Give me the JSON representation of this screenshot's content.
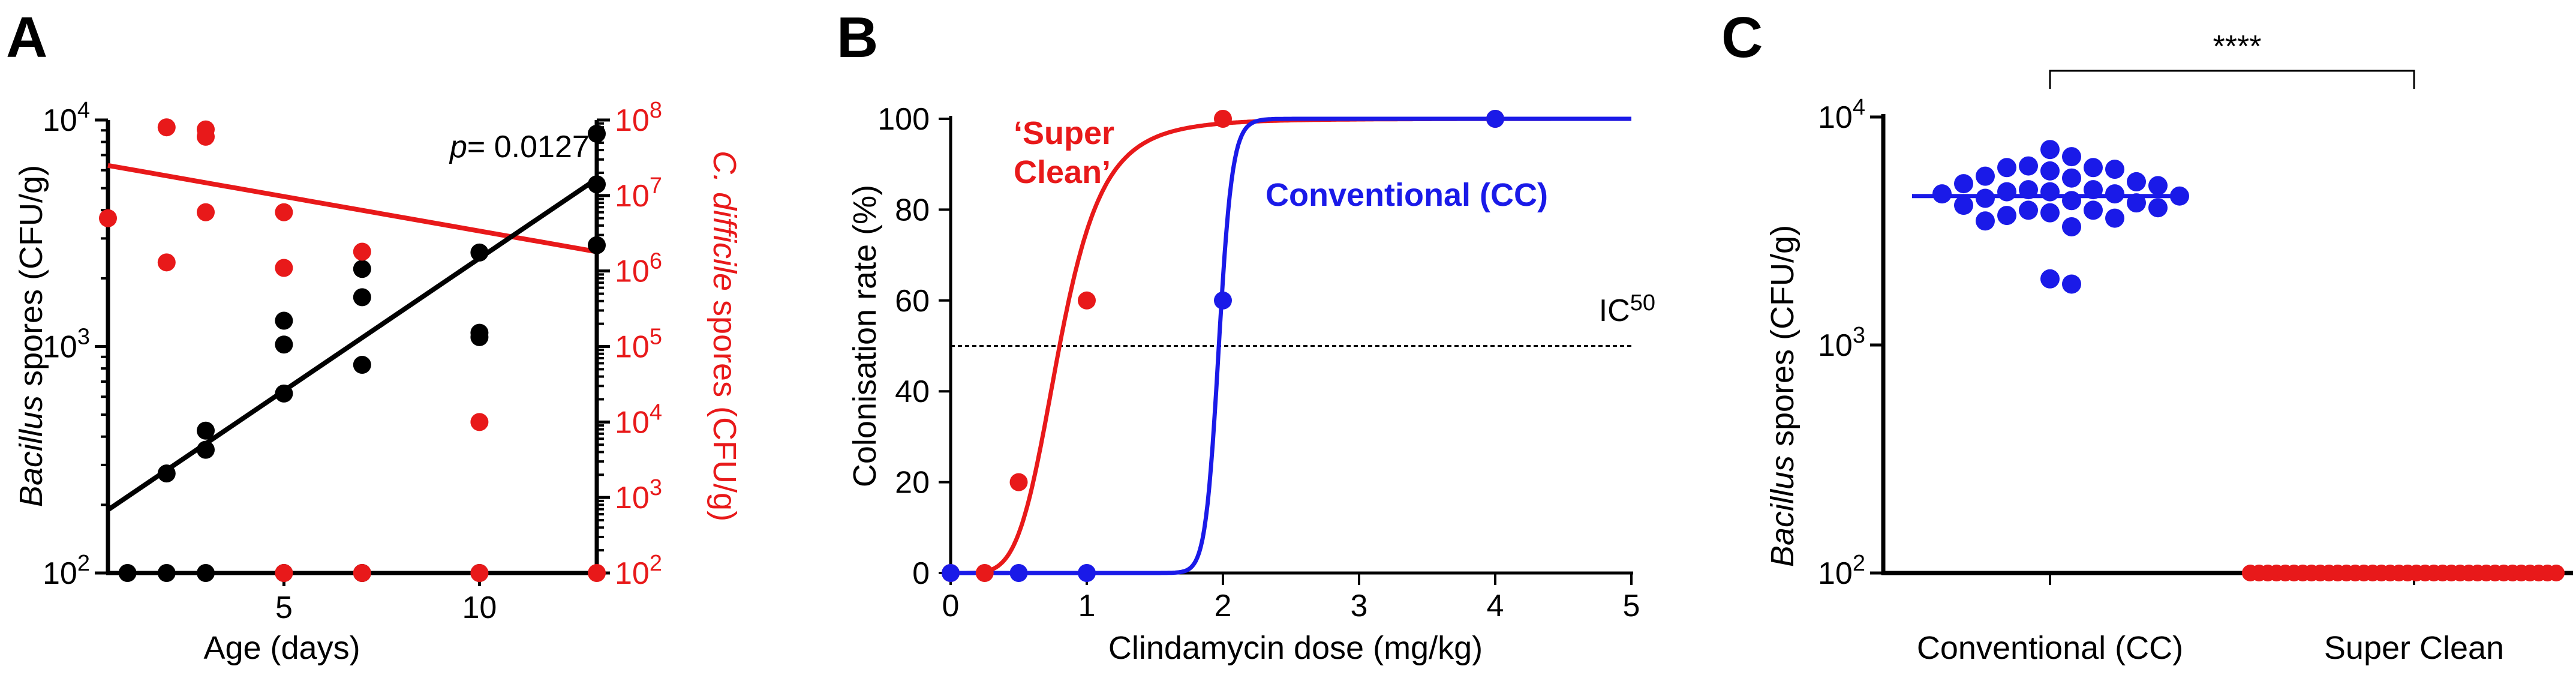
{
  "chart_data": [
    {
      "panel": "A",
      "type": "scatter",
      "xlabel": "Age (days)",
      "ylabel_italic": "Bacillus",
      "ylabel_rest": " spores (CFU/g)",
      "y2label_italic": "C. difficile",
      "y2label_rest": " spores  (CFU/g)",
      "xlim": [
        0.5,
        13
      ],
      "ylim": [
        100,
        10000
      ],
      "y2lim": [
        100,
        100000000
      ],
      "x_ticks": [
        5,
        10
      ],
      "y_ticks": [
        {
          "exp": "2"
        },
        {
          "exp": "3"
        },
        {
          "exp": "4"
        }
      ],
      "y2_ticks": [
        {
          "exp": "2"
        },
        {
          "exp": "3"
        },
        {
          "exp": "4"
        },
        {
          "exp": "5"
        },
        {
          "exp": "6"
        },
        {
          "exp": "7"
        },
        {
          "exp": "8"
        }
      ],
      "p_label": "p",
      "p_value": "= 0.0127",
      "colors": {
        "bacillus": "#000000",
        "cdiff": "#e8191a"
      },
      "bacillus_points": [
        [
          2,
          275
        ],
        [
          2,
          100
        ],
        [
          3,
          350
        ],
        [
          3,
          425
        ],
        [
          3,
          100
        ],
        [
          1,
          100
        ],
        [
          5,
          1300
        ],
        [
          5,
          1020
        ],
        [
          5,
          620
        ],
        [
          5,
          100
        ],
        [
          7,
          2200
        ],
        [
          7,
          1650
        ],
        [
          7,
          830
        ],
        [
          7,
          100
        ],
        [
          10,
          2600
        ],
        [
          10,
          1150
        ],
        [
          10,
          1100
        ],
        [
          10,
          100
        ],
        [
          13,
          8700
        ],
        [
          13,
          5200
        ],
        [
          13,
          2800
        ]
      ],
      "bacillus_fit": [
        [
          0.5,
          190
        ],
        [
          13,
          5500
        ]
      ],
      "cdiff_points": [
        [
          0.5,
          5000000
        ],
        [
          2,
          80000000
        ],
        [
          2,
          1300000
        ],
        [
          3,
          75000000
        ],
        [
          3,
          60000000
        ],
        [
          3,
          6000000
        ],
        [
          5,
          6000000
        ],
        [
          5,
          1100000
        ],
        [
          5,
          100
        ],
        [
          7,
          1800000
        ],
        [
          7,
          100
        ],
        [
          10,
          10000
        ],
        [
          10,
          100
        ],
        [
          13,
          100
        ]
      ],
      "cdiff_fit": [
        [
          0.5,
          25000000
        ],
        [
          13,
          1800000
        ]
      ]
    },
    {
      "panel": "B",
      "type": "line",
      "xlabel": "Clindamycin dose (mg/kg)",
      "ylabel": "Colonisation rate (%)",
      "xlim": [
        0,
        5
      ],
      "ylim": [
        0,
        100
      ],
      "x_ticks": [
        "0",
        "1",
        "2",
        "3",
        "4",
        "5"
      ],
      "y_ticks": [
        "0",
        "20",
        "40",
        "60",
        "80",
        "100"
      ],
      "ic50_value": 50,
      "ic50_label": "IC",
      "ic50_sub": "50",
      "series": [
        {
          "name_line1": "‘Super",
          "name_line2": "Clean’",
          "color": "#e8191a",
          "points": [
            [
              0,
              0
            ],
            [
              0.25,
              0
            ],
            [
              0.5,
              20
            ],
            [
              1,
              60
            ],
            [
              2,
              100
            ],
            [
              4,
              100
            ]
          ],
          "ec50": 0.8,
          "hill": 5
        },
        {
          "name": "Conventional (CC)",
          "color": "#1a1ae8",
          "points": [
            [
              0,
              0
            ],
            [
              0.5,
              0
            ],
            [
              1,
              0
            ],
            [
              2,
              60
            ],
            [
              4,
              100
            ]
          ],
          "ec50": 1.97,
          "hill": 40
        }
      ]
    },
    {
      "panel": "C",
      "type": "scatter",
      "ylabel_italic": "Bacillus",
      "ylabel_rest": " spores (CFU/g)",
      "ylim": [
        100,
        10000
      ],
      "y_ticks": [
        {
          "exp": "2"
        },
        {
          "exp": "3"
        },
        {
          "exp": "4"
        }
      ],
      "categories": [
        "Conventional (CC)",
        "Super Clean"
      ],
      "significance": "****",
      "colors": {
        "conventional": "#1a1ae8",
        "superclean": "#e8191a"
      },
      "conventional_values": [
        5900,
        6700,
        5500,
        4700,
        6100,
        7200,
        6000,
        6000,
        5800,
        4600,
        5100,
        5400,
        4800,
        4500,
        5000,
        5200,
        4800,
        4400,
        4700,
        4600,
        3900,
        4100,
        3800,
        4300,
        4200,
        3700,
        4000,
        3600,
        3500,
        3900,
        3300,
        1850,
        1950
      ],
      "conventional_median": 4500,
      "superclean_count": 36,
      "superclean_value": 100
    }
  ]
}
